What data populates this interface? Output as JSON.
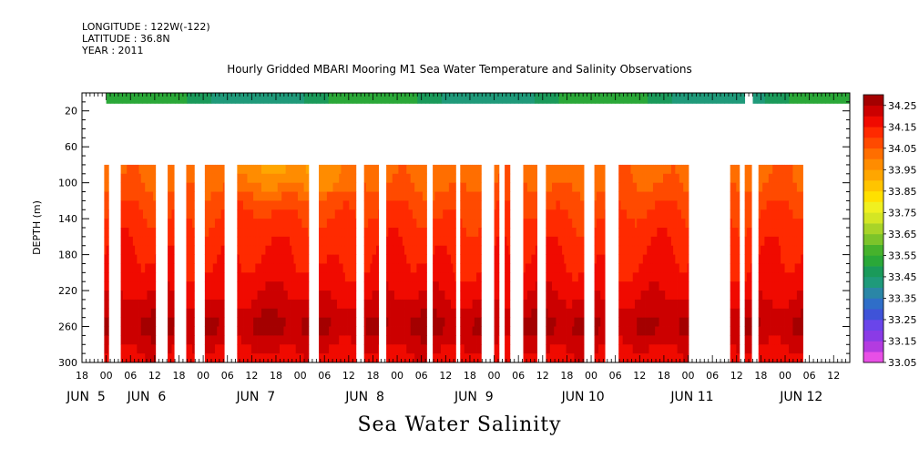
{
  "header": {
    "longitude": "LONGITUDE : 122W(-122)",
    "latitude": "LATITUDE : 36.8N",
    "year": "YEAR : 2011"
  },
  "title": "Hourly Gridded MBARI Mooring M1 Sea Water Temperature and Salinity Observations",
  "bottom_title": "Sea Water Salinity",
  "chart_data": {
    "type": "heatmap",
    "title": "Hourly Gridded MBARI Mooring M1 Sea Water Temperature and Salinity Observations",
    "xlabel": "",
    "ylabel": "DEPTH (m)",
    "variable": "Sea Water Salinity",
    "xlim_hours_from_jun4_18": [
      0,
      190
    ],
    "ylim": [
      300,
      0
    ],
    "y_ticks": [
      20,
      60,
      100,
      140,
      180,
      220,
      260,
      300
    ],
    "x_hour_ticks": [
      {
        "h": 0,
        "label": "18"
      },
      {
        "h": 6,
        "label": "00"
      },
      {
        "h": 12,
        "label": "06"
      },
      {
        "h": 18,
        "label": "12"
      },
      {
        "h": 24,
        "label": "18"
      },
      {
        "h": 30,
        "label": "00"
      },
      {
        "h": 36,
        "label": "06"
      },
      {
        "h": 42,
        "label": "12"
      },
      {
        "h": 48,
        "label": "18"
      },
      {
        "h": 54,
        "label": "00"
      },
      {
        "h": 60,
        "label": "06"
      },
      {
        "h": 66,
        "label": "12"
      },
      {
        "h": 72,
        "label": "18"
      },
      {
        "h": 78,
        "label": "00"
      },
      {
        "h": 84,
        "label": "06"
      },
      {
        "h": 90,
        "label": "12"
      },
      {
        "h": 96,
        "label": "18"
      },
      {
        "h": 102,
        "label": "00"
      },
      {
        "h": 108,
        "label": "06"
      },
      {
        "h": 114,
        "label": "12"
      },
      {
        "h": 120,
        "label": "18"
      },
      {
        "h": 126,
        "label": "00"
      },
      {
        "h": 132,
        "label": "06"
      },
      {
        "h": 138,
        "label": "12"
      },
      {
        "h": 144,
        "label": "18"
      },
      {
        "h": 150,
        "label": "00"
      },
      {
        "h": 156,
        "label": "06"
      },
      {
        "h": 162,
        "label": "12"
      },
      {
        "h": 168,
        "label": "18"
      },
      {
        "h": 174,
        "label": "00"
      },
      {
        "h": 180,
        "label": "06"
      },
      {
        "h": 186,
        "label": "12"
      }
    ],
    "day_labels": [
      {
        "h": 1,
        "label": "JUN  5"
      },
      {
        "h": 16,
        "label": "JUN  6"
      },
      {
        "h": 43,
        "label": "JUN  7"
      },
      {
        "h": 70,
        "label": "JUN  8"
      },
      {
        "h": 97,
        "label": "JUN  9"
      },
      {
        "h": 124,
        "label": "JUN 10"
      },
      {
        "h": 151,
        "label": "JUN 11"
      },
      {
        "h": 178,
        "label": "JUN 12"
      }
    ],
    "colorbar": {
      "min": 33.05,
      "max": 34.3,
      "step": 0.05,
      "labels": [
        34.25,
        34.15,
        34.05,
        33.95,
        33.85,
        33.75,
        33.65,
        33.55,
        33.45,
        33.35,
        33.25,
        33.15,
        33.05
      ],
      "colors_bottom_to_top": [
        "#e84fe6",
        "#b33be0",
        "#8a3be6",
        "#6a45ea",
        "#3f53d8",
        "#2f6ec8",
        "#2a86a6",
        "#1f9a7a",
        "#1a9a5a",
        "#2aa838",
        "#46b22c",
        "#7cc42a",
        "#a8d428",
        "#d4e624",
        "#f0f020",
        "#ffe000",
        "#ffc400",
        "#ffa600",
        "#ff8c00",
        "#ff6e00",
        "#ff4a00",
        "#ff2a00",
        "#f00a00",
        "#cc0000",
        "#a40000"
      ]
    },
    "surface_layer": {
      "depth": 10,
      "value_range": [
        33.4,
        33.55
      ],
      "spans_hours": [
        [
          6,
          164
        ],
        [
          166,
          190
        ]
      ]
    },
    "data_depth_range": [
      80,
      300
    ],
    "data_segments_hours": [
      [
        5.5,
        6.6
      ],
      [
        9.6,
        18.2
      ],
      [
        21.2,
        22.8
      ],
      [
        25.8,
        27.8
      ],
      [
        30.4,
        35.2
      ],
      [
        38.4,
        56.1
      ],
      [
        58.6,
        67.8
      ],
      [
        69.8,
        73.4
      ],
      [
        75.3,
        85.3
      ],
      [
        86.8,
        92.5
      ],
      [
        93.6,
        98.8
      ],
      [
        102,
        103.2
      ],
      [
        104.6,
        105.9
      ],
      [
        109.2,
        112.6
      ],
      [
        114.8,
        124.2
      ],
      [
        126.8,
        129.4
      ],
      [
        132.8,
        150.1
      ],
      [
        160.4,
        162.7
      ],
      [
        164.0,
        165.7
      ],
      [
        167.4,
        178.4
      ]
    ],
    "depth_profile": [
      {
        "depth": 80,
        "value": 34.03
      },
      {
        "depth": 100,
        "value": 34.04
      },
      {
        "depth": 120,
        "value": 34.08
      },
      {
        "depth": 160,
        "value": 34.13
      },
      {
        "depth": 200,
        "value": 34.16
      },
      {
        "depth": 230,
        "value": 34.2
      },
      {
        "depth": 260,
        "value": 34.26
      },
      {
        "depth": 280,
        "value": 34.21
      },
      {
        "depth": 300,
        "value": 34.17
      }
    ],
    "grid": false,
    "legend": "right"
  }
}
